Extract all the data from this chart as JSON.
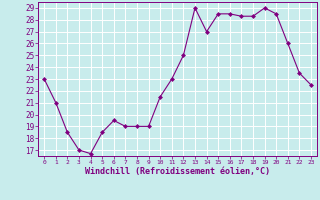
{
  "x": [
    0,
    1,
    2,
    3,
    4,
    5,
    6,
    7,
    8,
    9,
    10,
    11,
    12,
    13,
    14,
    15,
    16,
    17,
    18,
    19,
    20,
    21,
    22,
    23
  ],
  "y": [
    23,
    21,
    18.5,
    17,
    16.7,
    18.5,
    19.5,
    19,
    19,
    19,
    21.5,
    23,
    25,
    29,
    27,
    28.5,
    28.5,
    28.3,
    28.3,
    29,
    28.5,
    26,
    23.5,
    22.5
  ],
  "line_color": "#800080",
  "marker": "D",
  "marker_size": 2,
  "bg_color": "#c8ecec",
  "grid_color": "#ffffff",
  "xlabel": "Windchill (Refroidissement éolien,°C)",
  "xlabel_color": "#800080",
  "tick_color": "#800080",
  "ylim": [
    16.5,
    29.5
  ],
  "yticks": [
    17,
    18,
    19,
    20,
    21,
    22,
    23,
    24,
    25,
    26,
    27,
    28,
    29
  ],
  "xlim": [
    -0.5,
    23.5
  ],
  "xticks": [
    0,
    1,
    2,
    3,
    4,
    5,
    6,
    7,
    8,
    9,
    10,
    11,
    12,
    13,
    14,
    15,
    16,
    17,
    18,
    19,
    20,
    21,
    22,
    23
  ]
}
